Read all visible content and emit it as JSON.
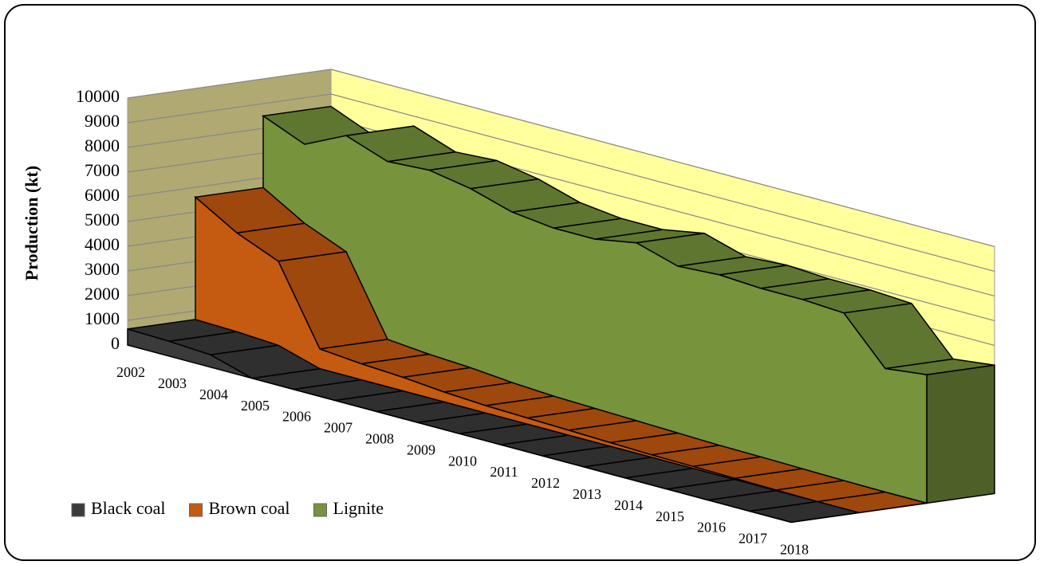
{
  "chart_data": {
    "type": "area3d",
    "ylabel": "Production (kt)",
    "categories": [
      "2002",
      "2003",
      "2004",
      "2005",
      "2006",
      "2007",
      "2008",
      "2009",
      "2010",
      "2011",
      "2012",
      "2013",
      "2014",
      "2015",
      "2016",
      "2017",
      "2018"
    ],
    "series": [
      {
        "name": "Black coal",
        "color": "#3b3b3b",
        "values": [
          650,
          600,
          500,
          0,
          0,
          0,
          0,
          0,
          0,
          0,
          0,
          0,
          0,
          0,
          0,
          0,
          0
        ]
      },
      {
        "name": "Brown coal",
        "color": "#c55a11",
        "values": [
          5600,
          4600,
          3900,
          800,
          650,
          550,
          400,
          300,
          250,
          200,
          150,
          100,
          80,
          50,
          20,
          0,
          0
        ]
      },
      {
        "name": "Lignite",
        "color": "#77933c",
        "values": [
          8500,
          7800,
          8600,
          8000,
          8100,
          7800,
          7300,
          7100,
          7100,
          7400,
          6900,
          7000,
          6900,
          6900,
          6800,
          5000,
          5200
        ]
      }
    ],
    "ylim": [
      0,
      10000
    ],
    "yticks": [
      0,
      1000,
      2000,
      3000,
      4000,
      5000,
      6000,
      7000,
      8000,
      9000,
      10000
    ],
    "grid": true,
    "legend": "bottom-left"
  }
}
